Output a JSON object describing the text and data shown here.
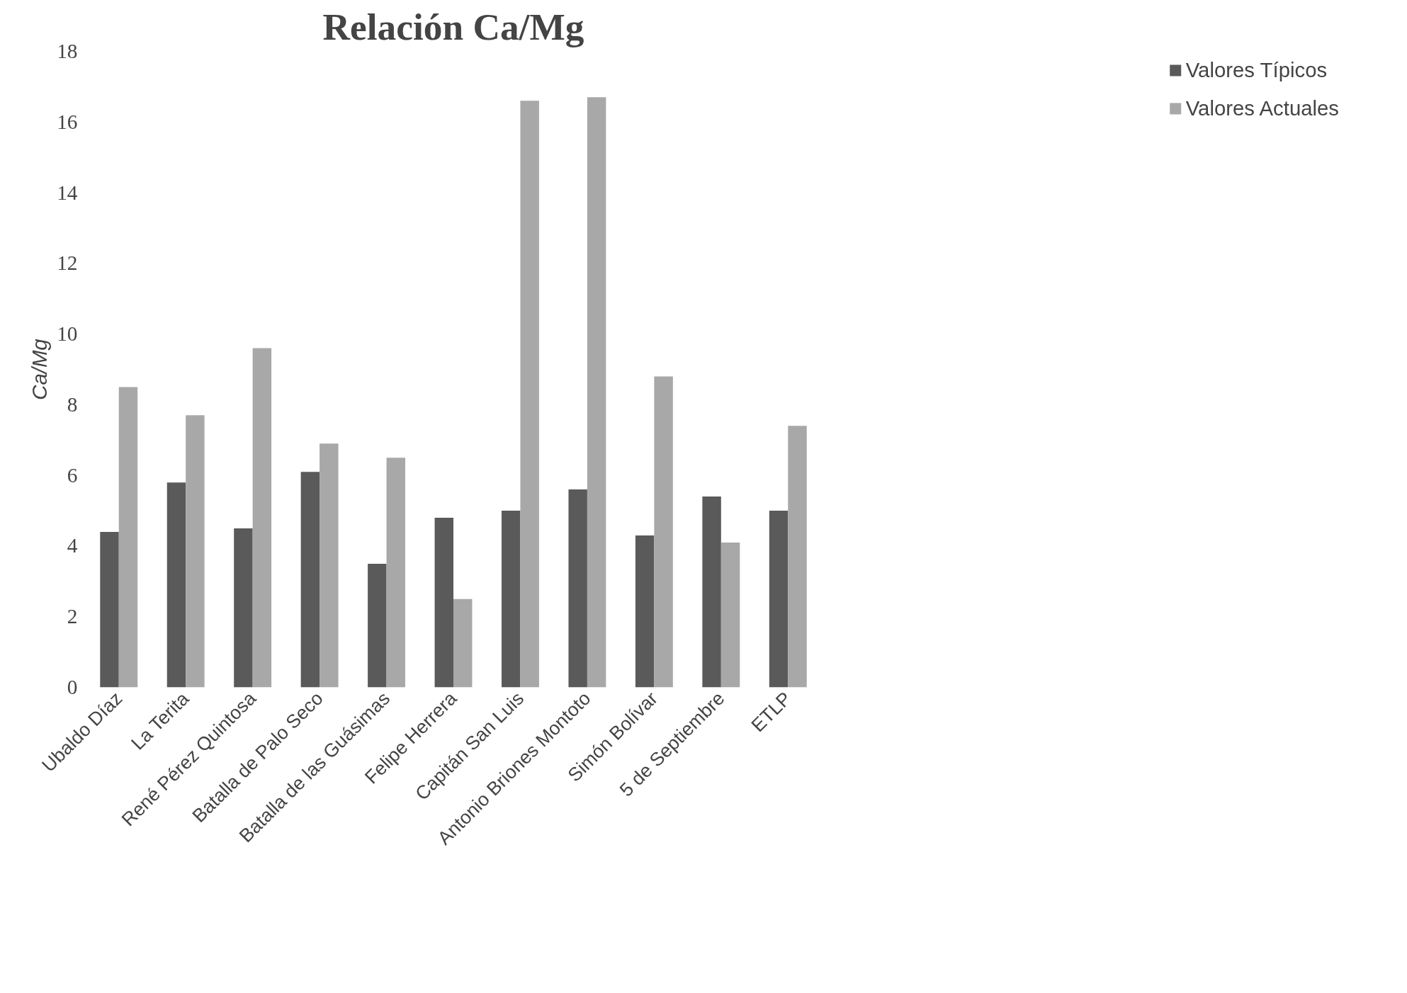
{
  "chart_data": {
    "type": "bar",
    "title": "Relación Ca/Mg",
    "ylabel": "Ca/Mg",
    "categories": [
      "Ubaldo Díaz",
      "La Terita",
      "René Pérez Quintosa",
      "Batalla de Palo Seco",
      "Batalla de las Guásimas",
      "Felipe Herrera",
      "Capitán San Luis",
      "Antonio Briones Montoto",
      "Simón Bolívar",
      "5 de Septiembre",
      "ETLP"
    ],
    "series": [
      {
        "name": "Valores Típicos",
        "color": "#5a5a5a",
        "values": [
          4.4,
          5.8,
          4.5,
          6.1,
          3.5,
          4.8,
          5.0,
          5.6,
          4.3,
          5.4,
          5.0
        ]
      },
      {
        "name": "Valores Actuales",
        "color": "#a8a8a8",
        "values": [
          8.5,
          7.7,
          9.6,
          6.9,
          6.5,
          2.5,
          16.6,
          16.7,
          8.8,
          4.1,
          7.4
        ]
      }
    ],
    "ylim": [
      0,
      18
    ],
    "yticks": [
      0,
      2,
      4,
      6,
      8,
      10,
      12,
      14,
      16,
      18
    ],
    "grid": false,
    "legend": "right"
  }
}
